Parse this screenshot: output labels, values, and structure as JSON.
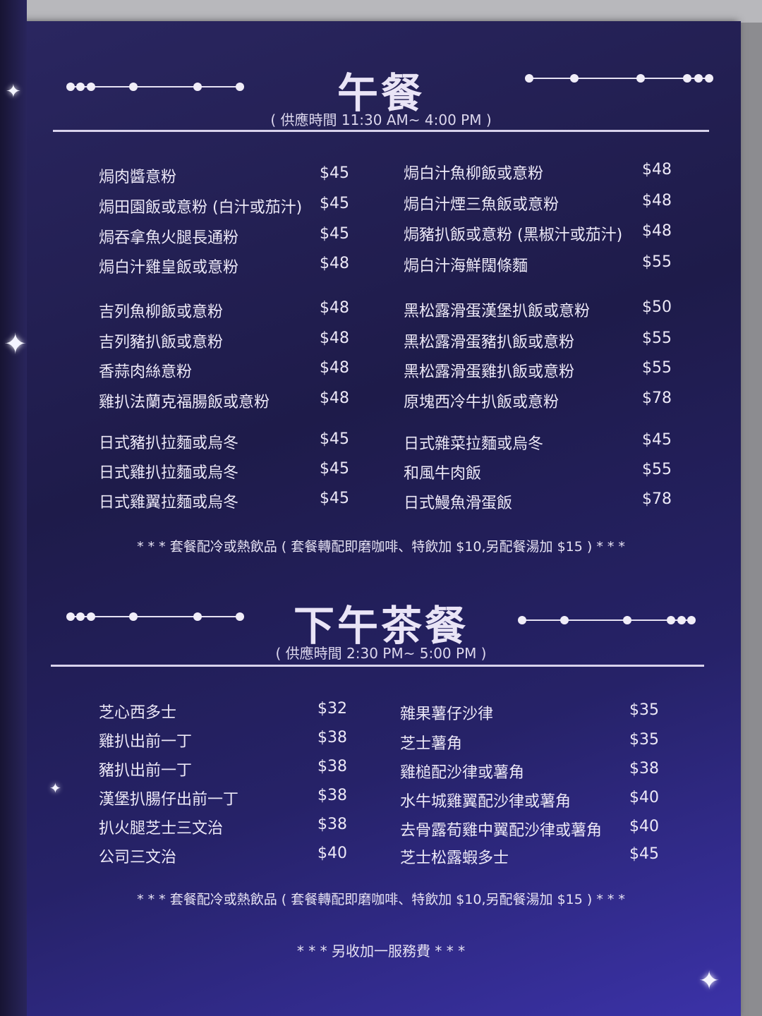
{
  "lunch": {
    "title": "午餐",
    "hours": "( 供應時間 11:30 AM~ 4:00 PM )",
    "left": [
      {
        "name": "焗肉醬意粉",
        "price": "$45"
      },
      {
        "name": "焗田園飯或意粉 (白汁或茄汁)",
        "price": "$45"
      },
      {
        "name": "焗吞拿魚火腿長通粉",
        "price": "$45"
      },
      {
        "name": "焗白汁雞皇飯或意粉",
        "price": "$48"
      },
      {
        "name": "吉列魚柳飯或意粉",
        "price": "$48"
      },
      {
        "name": "吉列豬扒飯或意粉",
        "price": "$48"
      },
      {
        "name": "香蒜肉絲意粉",
        "price": "$48"
      },
      {
        "name": "雞扒法蘭克福腸飯或意粉",
        "price": "$48"
      },
      {
        "name": "日式豬扒拉麵或烏冬",
        "price": "$45"
      },
      {
        "name": "日式雞扒拉麵或烏冬",
        "price": "$45"
      },
      {
        "name": "日式雞翼拉麵或烏冬",
        "price": "$45"
      }
    ],
    "right": [
      {
        "name": "焗白汁魚柳飯或意粉",
        "price": "$48"
      },
      {
        "name": "焗白汁煙三魚飯或意粉",
        "price": "$48"
      },
      {
        "name": "焗豬扒飯或意粉 (黑椒汁或茄汁)",
        "price": "$48"
      },
      {
        "name": "焗白汁海鮮闊條麵",
        "price": "$55"
      },
      {
        "name": "黑松露滑蛋漢堡扒飯或意粉",
        "price": "$50"
      },
      {
        "name": "黑松露滑蛋豬扒飯或意粉",
        "price": "$55"
      },
      {
        "name": "黑松露滑蛋雞扒飯或意粉",
        "price": "$55"
      },
      {
        "name": "原塊西冷牛扒飯或意粉",
        "price": "$78"
      },
      {
        "name": "日式雜菜拉麵或烏冬",
        "price": "$45"
      },
      {
        "name": "和風牛肉飯",
        "price": "$55"
      },
      {
        "name": "日式鰻魚滑蛋飯",
        "price": "$78"
      }
    ],
    "note": "* * * 套餐配冷或熱飲品 ( 套餐轉配即磨咖啡、特飲加 $10,另配餐湯加 $15 ) * * *"
  },
  "tea": {
    "title": "下午茶餐",
    "hours": "( 供應時間 2:30 PM~ 5:00 PM )",
    "left": [
      {
        "name": "芝心西多士",
        "price": "$32"
      },
      {
        "name": "雞扒出前一丁",
        "price": "$38"
      },
      {
        "name": "豬扒出前一丁",
        "price": "$38"
      },
      {
        "name": "漢堡扒腸仔出前一丁",
        "price": "$38"
      },
      {
        "name": "扒火腿芝士三文治",
        "price": "$38"
      },
      {
        "name": "公司三文治",
        "price": "$40"
      }
    ],
    "right": [
      {
        "name": "雜果薯仔沙律",
        "price": "$35"
      },
      {
        "name": "芝士薯角",
        "price": "$35"
      },
      {
        "name": "雞槌配沙律或薯角",
        "price": "$38"
      },
      {
        "name": "水牛城雞翼配沙律或薯角",
        "price": "$40"
      },
      {
        "name": "去骨露荀雞中翼配沙律或薯角",
        "price": "$40"
      },
      {
        "name": "芝士松露蝦多士",
        "price": "$45"
      }
    ],
    "note": "* * * 套餐配冷或熱飲品 ( 套餐轉配即磨咖啡、特飲加 $10,另配餐湯加 $15 ) * * *"
  },
  "service_note": "* * *  另收加一服務費  * * *",
  "colors": {
    "background": "#1e1b4a",
    "text": "#ece8f7",
    "accent": "#3b32a8"
  }
}
